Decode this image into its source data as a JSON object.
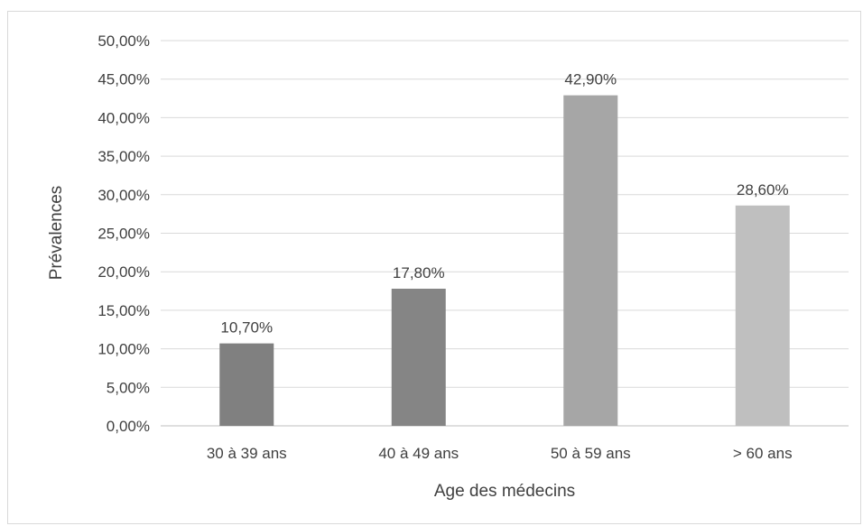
{
  "chart_data": {
    "type": "bar",
    "title": "",
    "xlabel": "Age des médecins",
    "ylabel": "Prévalences",
    "categories": [
      "30 à 39 ans",
      "40 à 49 ans",
      "50 à 59 ans",
      "> 60 ans"
    ],
    "values": [
      10.7,
      17.8,
      42.9,
      28.6
    ],
    "data_labels": [
      "10,70%",
      "17,80%",
      "42,90%",
      "28,60%"
    ],
    "ylim": [
      0,
      50
    ],
    "yticks": [
      0,
      5,
      10,
      15,
      20,
      25,
      30,
      35,
      40,
      45,
      50
    ],
    "ytick_labels": [
      "0,00%",
      "5,00%",
      "10,00%",
      "15,00%",
      "20,00%",
      "25,00%",
      "30,00%",
      "35,00%",
      "40,00%",
      "45,00%",
      "50,00%"
    ],
    "bar_colors": [
      "#808080",
      "#858585",
      "#a6a6a6",
      "#bfbfbf"
    ],
    "grid": true,
    "legend": "none"
  }
}
